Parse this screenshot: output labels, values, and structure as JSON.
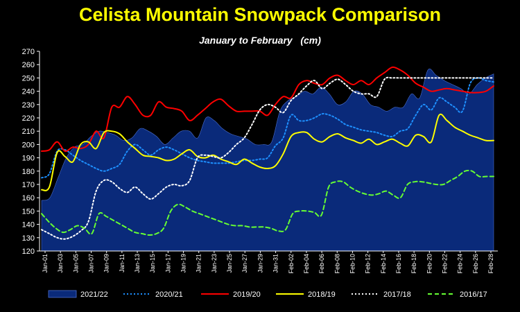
{
  "chart_data": {
    "type": "line",
    "title": "Celista Mountain Snowpack Comparison",
    "subtitle": "January to February   (cm)",
    "xlabel": "",
    "ylabel": "",
    "ylim": [
      120,
      270
    ],
    "yticks": [
      120,
      130,
      140,
      150,
      160,
      170,
      180,
      190,
      200,
      210,
      220,
      230,
      240,
      250,
      260,
      270
    ],
    "x_tick_labels": [
      "Jan-01",
      "Jan-03",
      "Jan-05",
      "Jan-07",
      "Jan-09",
      "Jan-11",
      "Jan-13",
      "Jan-15",
      "Jan-17",
      "Jan-19",
      "Jan-21",
      "Jan-23",
      "Jan-25",
      "Jan-27",
      "Jan-29",
      "Jan-31",
      "Feb-02",
      "Feb-04",
      "Feb-06",
      "Feb-08",
      "Feb-10",
      "Feb-12",
      "Feb-14",
      "Feb-16",
      "Feb-18",
      "Feb-20",
      "Feb-22",
      "Feb-24",
      "Feb-26",
      "Feb-28"
    ],
    "grid": false,
    "legend_position": "bottom",
    "series": [
      {
        "name": "2021/22",
        "style": "area",
        "color": "#0a2a7a",
        "values": [
          158,
          160,
          175,
          190,
          198,
          200,
          206,
          210,
          209,
          207,
          203,
          205,
          212,
          210,
          206,
          200,
          205,
          210,
          210,
          205,
          220,
          218,
          212,
          208,
          206,
          204,
          200,
          200,
          202,
          225,
          233,
          236,
          240,
          238,
          243,
          238,
          230,
          232,
          240,
          238,
          230,
          228,
          225,
          228,
          228,
          238,
          235,
          256,
          252,
          248,
          245,
          242,
          238,
          245,
          250,
          253
        ]
      },
      {
        "name": "2020/21",
        "style": "dotted",
        "color": "#1e90ff",
        "values": [
          175,
          178,
          195,
          196,
          192,
          188,
          185,
          182,
          180,
          182,
          185,
          195,
          200,
          196,
          192,
          196,
          198,
          196,
          193,
          190,
          188,
          187,
          186,
          186,
          186,
          187,
          188,
          188,
          189,
          190,
          199,
          205,
          222,
          218,
          218,
          220,
          223,
          222,
          219,
          215,
          213,
          211,
          210,
          209,
          207,
          206,
          210,
          212,
          222,
          230,
          226,
          235,
          232,
          228,
          225,
          246,
          250,
          248,
          247
        ]
      },
      {
        "name": "2019/20",
        "style": "solid",
        "color": "#ff0000",
        "values": [
          195,
          196,
          202,
          195,
          198,
          197,
          200,
          210,
          205,
          228,
          228,
          236,
          230,
          222,
          222,
          232,
          228,
          227,
          225,
          218,
          222,
          227,
          232,
          234,
          229,
          225,
          225,
          225,
          225,
          222,
          230,
          236,
          235,
          245,
          248,
          246,
          245,
          250,
          252,
          248,
          245,
          248,
          245,
          250,
          254,
          258,
          256,
          252,
          246,
          243,
          240,
          241,
          242,
          241,
          240,
          239,
          239,
          240,
          244
        ]
      },
      {
        "name": "2018/19",
        "style": "solid",
        "color": "#ffff00",
        "values": [
          166,
          168,
          194,
          191,
          187,
          200,
          202,
          197,
          209,
          210,
          208,
          202,
          197,
          192,
          191,
          190,
          188,
          189,
          193,
          196,
          191,
          190,
          192,
          189,
          187,
          185,
          189,
          186,
          183,
          182,
          184,
          193,
          206,
          209,
          209,
          204,
          202,
          206,
          208,
          205,
          203,
          201,
          204,
          200,
          202,
          204,
          201,
          199,
          207,
          206,
          202,
          222,
          218,
          213,
          210,
          207,
          205,
          203,
          203
        ]
      },
      {
        "name": "2017/18",
        "style": "dotted",
        "color": "#ffffff",
        "values": [
          136,
          133,
          130,
          129,
          131,
          135,
          142,
          165,
          173,
          172,
          167,
          164,
          168,
          163,
          159,
          163,
          168,
          170,
          169,
          173,
          190,
          192,
          191,
          190,
          194,
          200,
          205,
          215,
          226,
          230,
          228,
          224,
          233,
          238,
          244,
          248,
          242,
          246,
          249,
          245,
          240,
          238,
          238,
          236,
          249,
          250,
          250,
          250,
          250,
          250,
          250,
          250,
          250,
          250,
          250,
          250,
          250,
          250,
          250
        ]
      },
      {
        "name": "2016/17",
        "style": "dashed",
        "color": "#66ff33",
        "values": [
          148,
          142,
          137,
          134,
          136,
          139,
          137,
          133,
          148,
          146,
          143,
          140,
          137,
          134,
          133,
          132,
          133,
          137,
          150,
          155,
          153,
          150,
          148,
          146,
          144,
          142,
          140,
          139,
          139,
          138,
          138,
          138,
          137,
          135,
          136,
          148,
          150,
          150,
          149,
          147,
          168,
          172,
          172,
          168,
          165,
          163,
          162,
          163,
          165,
          162,
          160,
          170,
          172,
          172,
          171,
          170,
          170,
          173,
          176,
          180,
          180,
          176,
          176,
          176
        ]
      }
    ]
  }
}
